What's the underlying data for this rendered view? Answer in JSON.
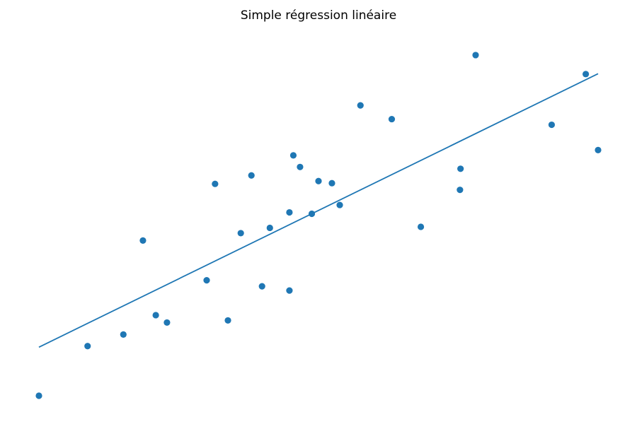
{
  "chart_data": {
    "type": "scatter",
    "title": "Simple régression linéaire",
    "axes_visible": false,
    "grid": false,
    "xlim": [
      0,
      1
    ],
    "ylim": [
      0,
      1
    ],
    "point_color": "#1f77b4",
    "line_color": "#1f77b4",
    "points": [
      {
        "x": 0.0,
        "y": 0.0
      },
      {
        "x": 0.087,
        "y": 0.141
      },
      {
        "x": 0.151,
        "y": 0.174
      },
      {
        "x": 0.186,
        "y": 0.441
      },
      {
        "x": 0.209,
        "y": 0.229
      },
      {
        "x": 0.229,
        "y": 0.208
      },
      {
        "x": 0.3,
        "y": 0.328
      },
      {
        "x": 0.315,
        "y": 0.602
      },
      {
        "x": 0.338,
        "y": 0.214
      },
      {
        "x": 0.361,
        "y": 0.462
      },
      {
        "x": 0.38,
        "y": 0.626
      },
      {
        "x": 0.399,
        "y": 0.311
      },
      {
        "x": 0.413,
        "y": 0.477
      },
      {
        "x": 0.448,
        "y": 0.299
      },
      {
        "x": 0.448,
        "y": 0.521
      },
      {
        "x": 0.455,
        "y": 0.683
      },
      {
        "x": 0.467,
        "y": 0.65
      },
      {
        "x": 0.488,
        "y": 0.517
      },
      {
        "x": 0.5,
        "y": 0.61
      },
      {
        "x": 0.524,
        "y": 0.604
      },
      {
        "x": 0.538,
        "y": 0.542
      },
      {
        "x": 0.575,
        "y": 0.825
      },
      {
        "x": 0.631,
        "y": 0.786
      },
      {
        "x": 0.683,
        "y": 0.48
      },
      {
        "x": 0.753,
        "y": 0.585
      },
      {
        "x": 0.754,
        "y": 0.645
      },
      {
        "x": 0.781,
        "y": 0.968
      },
      {
        "x": 0.917,
        "y": 0.77
      },
      {
        "x": 0.978,
        "y": 0.914
      },
      {
        "x": 1.0,
        "y": 0.698
      }
    ],
    "regression_line": {
      "x": [
        0.0,
        1.0
      ],
      "y": [
        0.138,
        0.915
      ]
    }
  }
}
